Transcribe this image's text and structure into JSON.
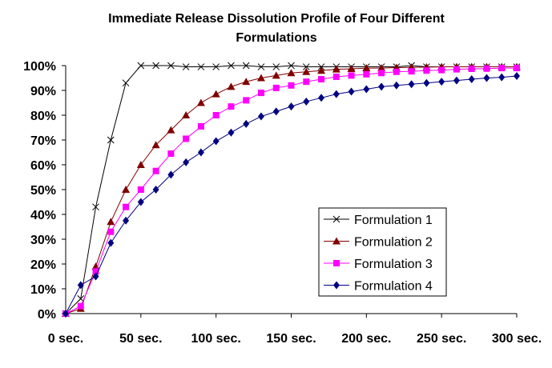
{
  "chart_data": {
    "type": "line",
    "title": [
      "Immediate Release Dissolution Profile of Four Different",
      "Formulations"
    ],
    "xlabel": "",
    "ylabel": "",
    "xlim": [
      0,
      300
    ],
    "ylim": [
      0,
      100
    ],
    "x_tick_labels": [
      "0 sec.",
      "50 sec.",
      "100 sec.",
      "150 sec.",
      "200 sec.",
      "250 sec.",
      "300 sec."
    ],
    "x_tick_values": [
      0,
      50,
      100,
      150,
      200,
      250,
      300
    ],
    "y_tick_labels": [
      "0%",
      "10%",
      "20%",
      "30%",
      "40%",
      "50%",
      "60%",
      "70%",
      "80%",
      "90%",
      "100%"
    ],
    "y_tick_values": [
      0,
      10,
      20,
      30,
      40,
      50,
      60,
      70,
      80,
      90,
      100
    ],
    "grid": false,
    "legend_position": "bottom-right",
    "x": [
      0,
      10,
      20,
      30,
      40,
      50,
      60,
      70,
      80,
      90,
      100,
      110,
      120,
      130,
      140,
      150,
      160,
      170,
      180,
      190,
      200,
      210,
      220,
      230,
      240,
      250,
      260,
      270,
      280,
      290,
      300
    ],
    "series": [
      {
        "name": "Formulation 1",
        "color": "#000000",
        "marker": "x",
        "values": [
          0,
          6,
          43,
          70,
          93,
          100,
          100,
          100,
          99.5,
          99.5,
          99.5,
          100,
          100,
          99.5,
          99.5,
          100,
          99.5,
          99.5,
          99.5,
          99.5,
          99.5,
          99.5,
          99.5,
          100,
          99.5,
          99.5,
          99.5,
          99.5,
          99.5,
          99.5,
          99.5
        ]
      },
      {
        "name": "Formulation 2",
        "color": "#800000",
        "marker": "triangle",
        "values": [
          0,
          2,
          19,
          37,
          50,
          60,
          68,
          74,
          80,
          85,
          88.5,
          91.5,
          93.5,
          95,
          96,
          97,
          97.5,
          98,
          98.5,
          98.7,
          99,
          99,
          99.2,
          99.3,
          99.4,
          99.5,
          99.5,
          99.5,
          99.5,
          99.5,
          99.5
        ]
      },
      {
        "name": "Formulation 3",
        "color": "#ff00ff",
        "marker": "square",
        "values": [
          0,
          3,
          17,
          33,
          43,
          50,
          57.5,
          64.5,
          70.5,
          75.5,
          80,
          83.5,
          86,
          89,
          91,
          92,
          93.5,
          94.5,
          95.5,
          96,
          96.5,
          97,
          97.5,
          97.7,
          98,
          98.2,
          98.5,
          98.7,
          98.8,
          99,
          99
        ]
      },
      {
        "name": "Formulation 4",
        "color": "#000080",
        "marker": "diamond",
        "values": [
          0,
          11.5,
          15,
          28.5,
          37.5,
          45,
          50,
          56,
          61,
          65,
          69.5,
          73,
          76.5,
          79.5,
          81.5,
          83.5,
          85.5,
          87,
          88.5,
          89.5,
          90.5,
          91.5,
          92,
          92.5,
          93,
          93.5,
          94,
          94.5,
          95,
          95.3,
          95.8
        ]
      }
    ]
  }
}
